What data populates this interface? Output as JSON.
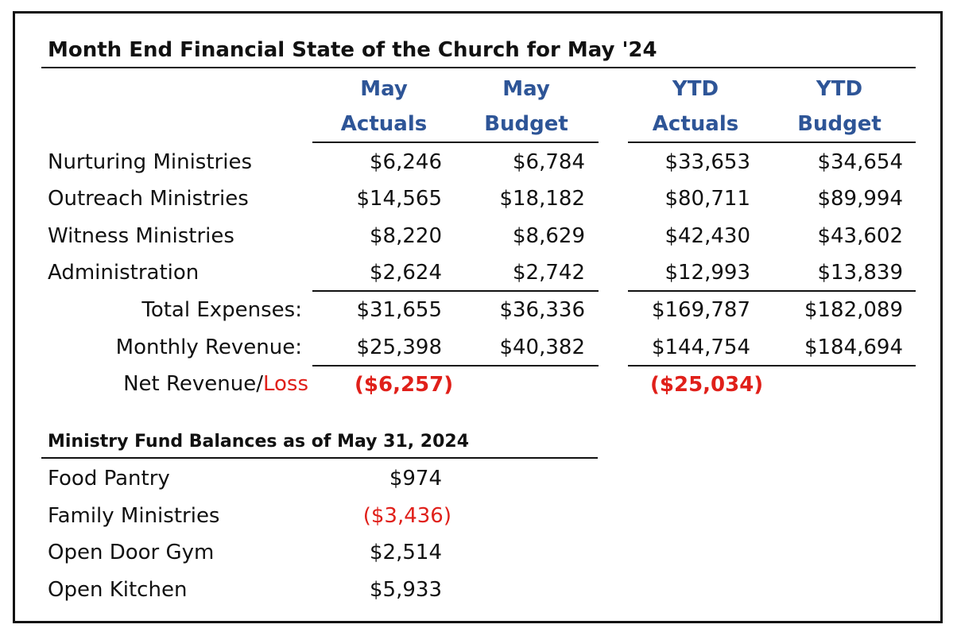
{
  "title": "Month End Financial State of the Church for May '24",
  "columns": [
    {
      "line1": "May",
      "line2": "Actuals"
    },
    {
      "line1": "May",
      "line2": "Budget"
    },
    {
      "line1": "YTD",
      "line2": "Actuals"
    },
    {
      "line1": "YTD",
      "line2": "Budget"
    }
  ],
  "rows": [
    {
      "label": "Nurturing Ministries",
      "values": [
        "$6,246",
        "$6,784",
        "$33,653",
        "$34,654"
      ]
    },
    {
      "label": "Outreach Ministries",
      "values": [
        "$14,565",
        "$18,182",
        "$80,711",
        "$89,994"
      ]
    },
    {
      "label": "Witness Ministries",
      "values": [
        "$8,220",
        "$8,629",
        "$42,430",
        "$43,602"
      ]
    },
    {
      "label": "Administration",
      "values": [
        "$2,624",
        "$2,742",
        "$12,993",
        "$13,839"
      ]
    }
  ],
  "totals": [
    {
      "label": "Total Expenses:",
      "values": [
        "$31,655",
        "$36,336",
        "$169,787",
        "$182,089"
      ]
    },
    {
      "label": "Monthly Revenue:",
      "values": [
        "$25,398",
        "$40,382",
        "$144,754",
        "$184,694"
      ]
    }
  ],
  "net": {
    "label_black": "Net Revenue/",
    "label_red": "Loss",
    "may_actual": "($6,257)",
    "ytd_actual": "($25,034)"
  },
  "funds": {
    "title": "Ministry Fund Balances as of May 31, 2024",
    "items": [
      {
        "label": "Food Pantry",
        "value": "$974"
      },
      {
        "label": "Family Ministries",
        "value": "($3,436)"
      },
      {
        "label": "Open Door Gym",
        "value": "$2,514"
      },
      {
        "label": "Open Kitchen",
        "value": "$5,933"
      }
    ]
  },
  "colors": {
    "header_blue": "#2E5597",
    "loss_red": "#E0201A"
  }
}
